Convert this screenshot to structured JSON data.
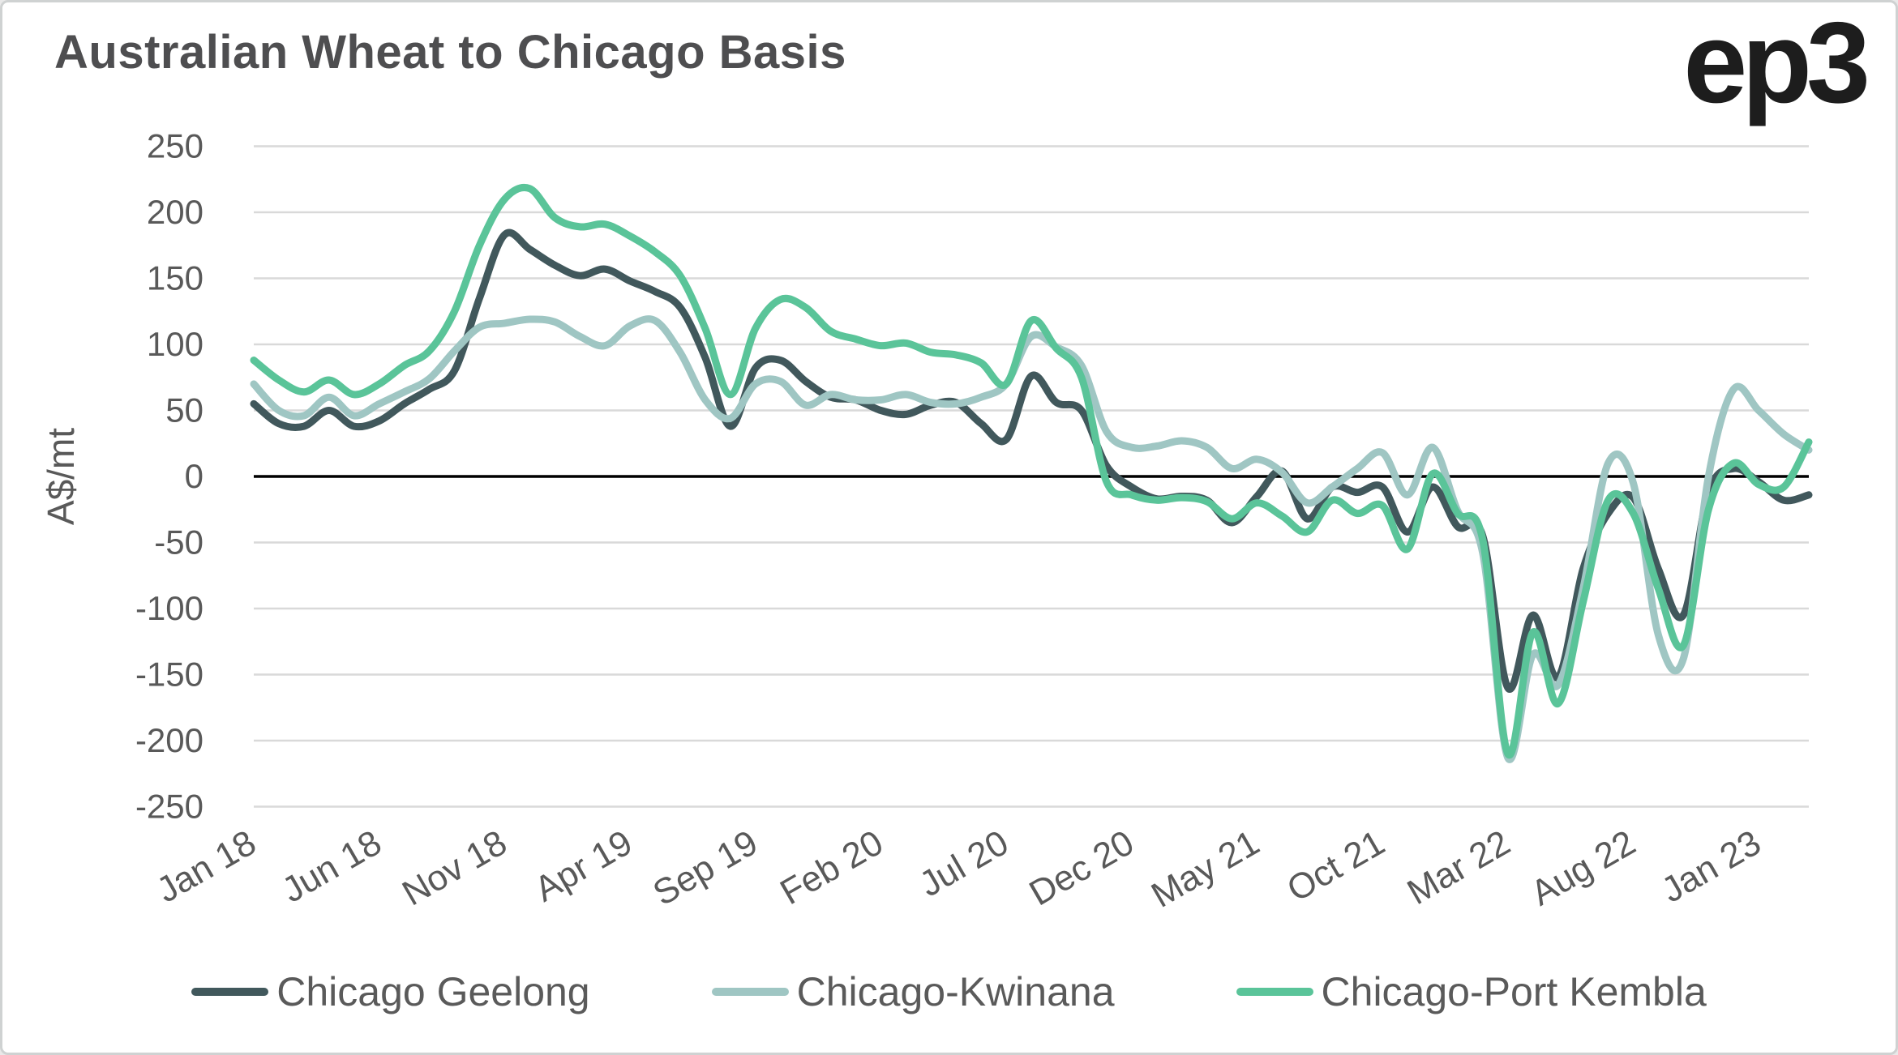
{
  "header": {
    "title": "Australian Wheat to Chicago Basis",
    "logo_text": "ep3"
  },
  "colors": {
    "grid": "#d9d9d9",
    "zero_line": "#000000",
    "axis_text": "#595959",
    "title_text": "#4e4e50",
    "logo_text": "#1d1d1d"
  },
  "chart_data": {
    "type": "line",
    "title": "Australian Wheat to Chicago Basis",
    "xlabel": "",
    "ylabel": "A$/mt",
    "ylim": [
      -250,
      250
    ],
    "y_ticks": [
      250,
      200,
      150,
      100,
      50,
      0,
      -50,
      -100,
      -150,
      -200,
      -250
    ],
    "grid": true,
    "zero_line": true,
    "legend_position": "bottom",
    "x_unit": "month",
    "x_start": "Jan 2018",
    "x_end": "Mar 2023",
    "x_tick_positions": [
      0,
      5,
      10,
      15,
      20,
      25,
      30,
      35,
      40,
      45,
      50,
      55,
      60
    ],
    "x_tick_labels": [
      "Jan 18",
      "Jun 18",
      "Nov 18",
      "Apr 19",
      "Sep 19",
      "Feb 20",
      "Jul 20",
      "Dec 20",
      "May 21",
      "Oct 21",
      "Mar 22",
      "Aug 22",
      "Jan 23"
    ],
    "series": [
      {
        "name": "Chicago Geelong",
        "color": "#41585c",
        "values": [
          55,
          40,
          38,
          50,
          38,
          42,
          55,
          66,
          80,
          135,
          183,
          172,
          160,
          152,
          157,
          148,
          140,
          128,
          90,
          38,
          82,
          88,
          72,
          60,
          58,
          50,
          47,
          54,
          56,
          40,
          28,
          76,
          56,
          50,
          8,
          -8,
          -17,
          -15,
          -18,
          -35,
          -15,
          4,
          -32,
          -8,
          -12,
          -8,
          -42,
          -8,
          -38,
          -45,
          -160,
          -105,
          -152,
          -70,
          -28,
          -16,
          -70,
          -105,
          -12,
          6,
          -4,
          -18,
          -14
        ]
      },
      {
        "name": "Chicago-Kwinana",
        "color": "#9fc6c3",
        "values": [
          70,
          50,
          46,
          60,
          46,
          55,
          64,
          74,
          95,
          113,
          116,
          119,
          117,
          106,
          99,
          114,
          118,
          94,
          58,
          44,
          70,
          72,
          54,
          62,
          58,
          58,
          62,
          56,
          55,
          60,
          70,
          106,
          98,
          84,
          34,
          22,
          23,
          27,
          22,
          6,
          13,
          3,
          -20,
          -8,
          6,
          18,
          -14,
          22,
          -26,
          -58,
          -213,
          -135,
          -158,
          -85,
          10,
          -5,
          -120,
          -138,
          0,
          66,
          50,
          32,
          20
        ]
      },
      {
        "name": "Chicago-Port Kembla",
        "color": "#5ac499",
        "values": [
          88,
          73,
          64,
          73,
          62,
          70,
          84,
          95,
          125,
          175,
          210,
          218,
          196,
          189,
          191,
          182,
          170,
          152,
          112,
          62,
          112,
          134,
          128,
          110,
          104,
          99,
          101,
          94,
          92,
          86,
          70,
          118,
          97,
          75,
          -4,
          -14,
          -18,
          -16,
          -19,
          -32,
          -20,
          -30,
          -42,
          -18,
          -28,
          -22,
          -55,
          2,
          -28,
          -48,
          -210,
          -118,
          -172,
          -95,
          -18,
          -28,
          -85,
          -128,
          -25,
          10,
          -6,
          -8,
          26
        ]
      }
    ]
  }
}
